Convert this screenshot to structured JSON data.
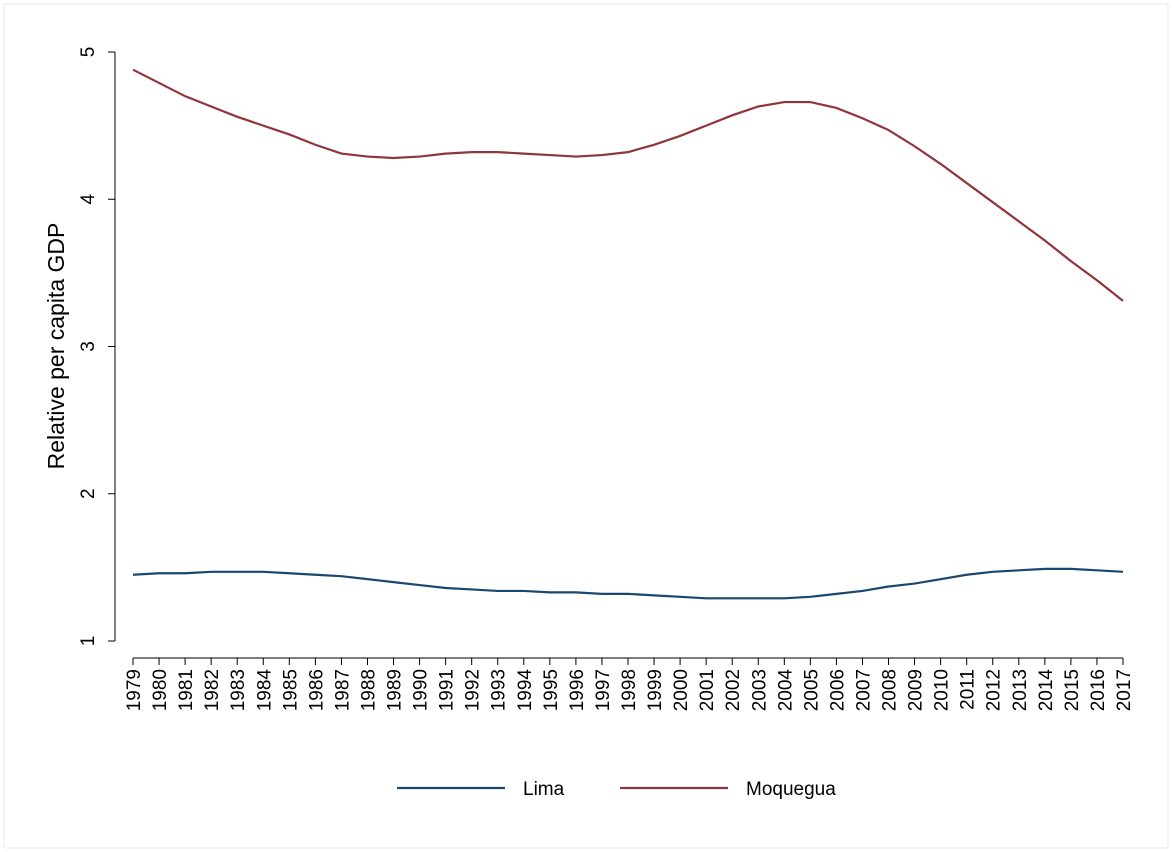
{
  "chart_data": {
    "type": "line",
    "y_label": "Relative per capita GDP",
    "x": [
      1979,
      1980,
      1981,
      1982,
      1983,
      1984,
      1985,
      1986,
      1987,
      1988,
      1989,
      1990,
      1991,
      1992,
      1993,
      1994,
      1995,
      1996,
      1997,
      1998,
      1999,
      2000,
      2001,
      2002,
      2003,
      2004,
      2005,
      2006,
      2007,
      2008,
      2009,
      2010,
      2011,
      2012,
      2013,
      2014,
      2015,
      2016,
      2017
    ],
    "series": [
      {
        "name": "Lima",
        "color": "#1a476f",
        "values": [
          1.45,
          1.46,
          1.46,
          1.47,
          1.47,
          1.47,
          1.46,
          1.45,
          1.44,
          1.42,
          1.4,
          1.38,
          1.36,
          1.35,
          1.34,
          1.34,
          1.33,
          1.33,
          1.32,
          1.32,
          1.31,
          1.3,
          1.29,
          1.29,
          1.29,
          1.29,
          1.3,
          1.32,
          1.34,
          1.37,
          1.39,
          1.42,
          1.45,
          1.47,
          1.48,
          1.49,
          1.49,
          1.48,
          1.47
        ]
      },
      {
        "name": "Moquegua",
        "color": "#90353b",
        "values": [
          4.88,
          4.79,
          4.7,
          4.63,
          4.56,
          4.5,
          4.44,
          4.37,
          4.31,
          4.29,
          4.28,
          4.29,
          4.31,
          4.32,
          4.32,
          4.31,
          4.3,
          4.29,
          4.3,
          4.32,
          4.37,
          4.43,
          4.5,
          4.57,
          4.63,
          4.66,
          4.66,
          4.62,
          4.55,
          4.47,
          4.36,
          4.24,
          4.11,
          3.98,
          3.85,
          3.72,
          3.58,
          3.45,
          3.31
        ]
      }
    ],
    "xlim": [
      1979,
      2017
    ],
    "xticks": [
      1979,
      1980,
      1981,
      1982,
      1983,
      1984,
      1985,
      1986,
      1987,
      1988,
      1989,
      1990,
      1991,
      1992,
      1993,
      1994,
      1995,
      1996,
      1997,
      1998,
      1999,
      2000,
      2001,
      2002,
      2003,
      2004,
      2005,
      2006,
      2007,
      2008,
      2009,
      2010,
      2011,
      2012,
      2013,
      2014,
      2015,
      2016,
      2017
    ],
    "ylim": [
      1,
      5
    ],
    "yticks": [
      1,
      2,
      3,
      4,
      5
    ],
    "grid": false,
    "legend": "bottom"
  }
}
